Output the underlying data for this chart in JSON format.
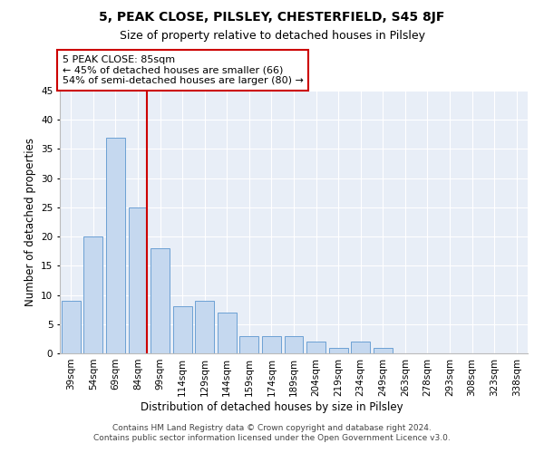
{
  "title": "5, PEAK CLOSE, PILSLEY, CHESTERFIELD, S45 8JF",
  "subtitle": "Size of property relative to detached houses in Pilsley",
  "xlabel": "Distribution of detached houses by size in Pilsley",
  "ylabel": "Number of detached properties",
  "categories": [
    "39sqm",
    "54sqm",
    "69sqm",
    "84sqm",
    "99sqm",
    "114sqm",
    "129sqm",
    "144sqm",
    "159sqm",
    "174sqm",
    "189sqm",
    "204sqm",
    "219sqm",
    "234sqm",
    "249sqm",
    "263sqm",
    "278sqm",
    "293sqm",
    "308sqm",
    "323sqm",
    "338sqm"
  ],
  "values": [
    9,
    20,
    37,
    25,
    18,
    8,
    9,
    7,
    3,
    3,
    3,
    2,
    1,
    2,
    1,
    0,
    0,
    0,
    0,
    0,
    0
  ],
  "bar_color": "#c5d8ef",
  "bar_edge_color": "#6ca0d4",
  "highlight_line_index": 3,
  "annotation_text": "5 PEAK CLOSE: 85sqm\n← 45% of detached houses are smaller (66)\n54% of semi-detached houses are larger (80) →",
  "annotation_box_color": "#ffffff",
  "annotation_box_edge": "#cc0000",
  "vline_color": "#cc0000",
  "ylim": [
    0,
    45
  ],
  "yticks": [
    0,
    5,
    10,
    15,
    20,
    25,
    30,
    35,
    40,
    45
  ],
  "footer": "Contains HM Land Registry data © Crown copyright and database right 2024.\nContains public sector information licensed under the Open Government Licence v3.0.",
  "plot_bg_color": "#e8eef7",
  "title_fontsize": 10,
  "subtitle_fontsize": 9,
  "xlabel_fontsize": 8.5,
  "ylabel_fontsize": 8.5,
  "tick_fontsize": 7.5,
  "footer_fontsize": 6.5
}
